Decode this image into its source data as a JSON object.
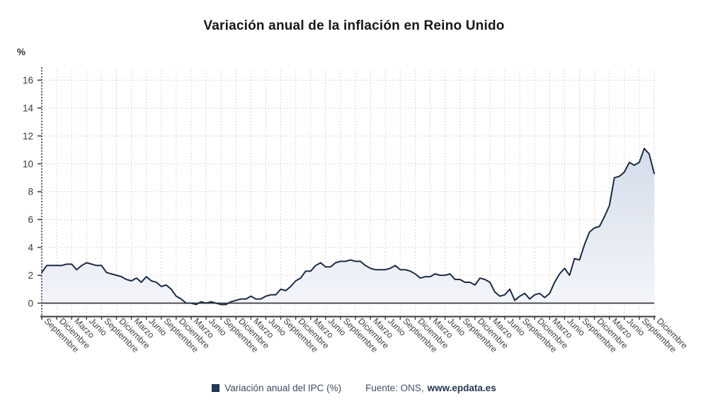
{
  "title": "Variación anual de la inflación en Reino Unido",
  "legend": {
    "series_label": "Variación anual del IPC (%)",
    "source_prefix": "Fuente: ONS,",
    "source_link": "www.epdata.es"
  },
  "colors": {
    "line": "#1c2b42",
    "legend_marker": "#1f3b5e",
    "area_top": "#d4dcea",
    "area_bottom": "#f3f5fa",
    "grid": "#cccccc",
    "axis": "#3a3a3e",
    "tick_text": "#3a3a3a"
  },
  "chart_data": {
    "type": "area",
    "title": "Variación anual de la inflación en Reino Unido",
    "ylabel": "%",
    "ylim": [
      0,
      16
    ],
    "y_ticks": [
      0,
      2,
      4,
      6,
      8,
      10,
      12,
      14,
      16
    ],
    "grid": "dotted",
    "legend_position": "bottom",
    "x_tick_every_n_points": 3,
    "x_tick_labels": [
      "Septiembre",
      "Diciembre",
      "Marzo",
      "Junio",
      "Septiembre",
      "Diciembre",
      "Marzo",
      "Junio",
      "Septiembre",
      "Diciembre",
      "Marzo",
      "Junio",
      "Septiembre",
      "Diciembre",
      "Marzo",
      "Junio",
      "Septiembre",
      "Diciembre",
      "Marzo",
      "Junio",
      "Septiembre",
      "Diciembre",
      "Marzo",
      "Junio",
      "Septiembre",
      "Diciembre",
      "Marzo",
      "Junio",
      "Septiembre",
      "Diciembre",
      "Marzo",
      "Junio",
      "Septiembre",
      "Diciembre",
      "Marzo",
      "Junio",
      "Septiembre",
      "Diciembre",
      "Marzo",
      "Junio",
      "Septiembre",
      "Diciembre"
    ],
    "series": [
      {
        "name": "Variación anual del IPC (%)",
        "values": [
          2.2,
          2.7,
          2.7,
          2.7,
          2.7,
          2.8,
          2.8,
          2.4,
          2.7,
          2.9,
          2.8,
          2.7,
          2.7,
          2.2,
          2.1,
          2.0,
          1.9,
          1.7,
          1.6,
          1.8,
          1.5,
          1.9,
          1.6,
          1.5,
          1.2,
          1.3,
          1.0,
          0.5,
          0.3,
          0.0,
          0.0,
          -0.1,
          0.1,
          0.0,
          0.1,
          0.0,
          -0.1,
          -0.1,
          0.1,
          0.2,
          0.3,
          0.3,
          0.5,
          0.3,
          0.3,
          0.5,
          0.6,
          0.6,
          1.0,
          0.9,
          1.2,
          1.6,
          1.8,
          2.3,
          2.3,
          2.7,
          2.9,
          2.6,
          2.6,
          2.9,
          3.0,
          3.0,
          3.1,
          3.0,
          3.0,
          2.7,
          2.5,
          2.4,
          2.4,
          2.4,
          2.5,
          2.7,
          2.4,
          2.4,
          2.3,
          2.1,
          1.8,
          1.9,
          1.9,
          2.1,
          2.0,
          2.0,
          2.1,
          1.7,
          1.7,
          1.5,
          1.5,
          1.3,
          1.8,
          1.7,
          1.5,
          0.8,
          0.5,
          0.6,
          1.0,
          0.2,
          0.5,
          0.7,
          0.3,
          0.6,
          0.7,
          0.4,
          0.7,
          1.5,
          2.1,
          2.5,
          2.0,
          3.2,
          3.1,
          4.2,
          5.1,
          5.4,
          5.5,
          6.2,
          7.0,
          9.0,
          9.1,
          9.4,
          10.1,
          9.9,
          10.1,
          11.1,
          10.7,
          9.3
        ]
      }
    ]
  }
}
